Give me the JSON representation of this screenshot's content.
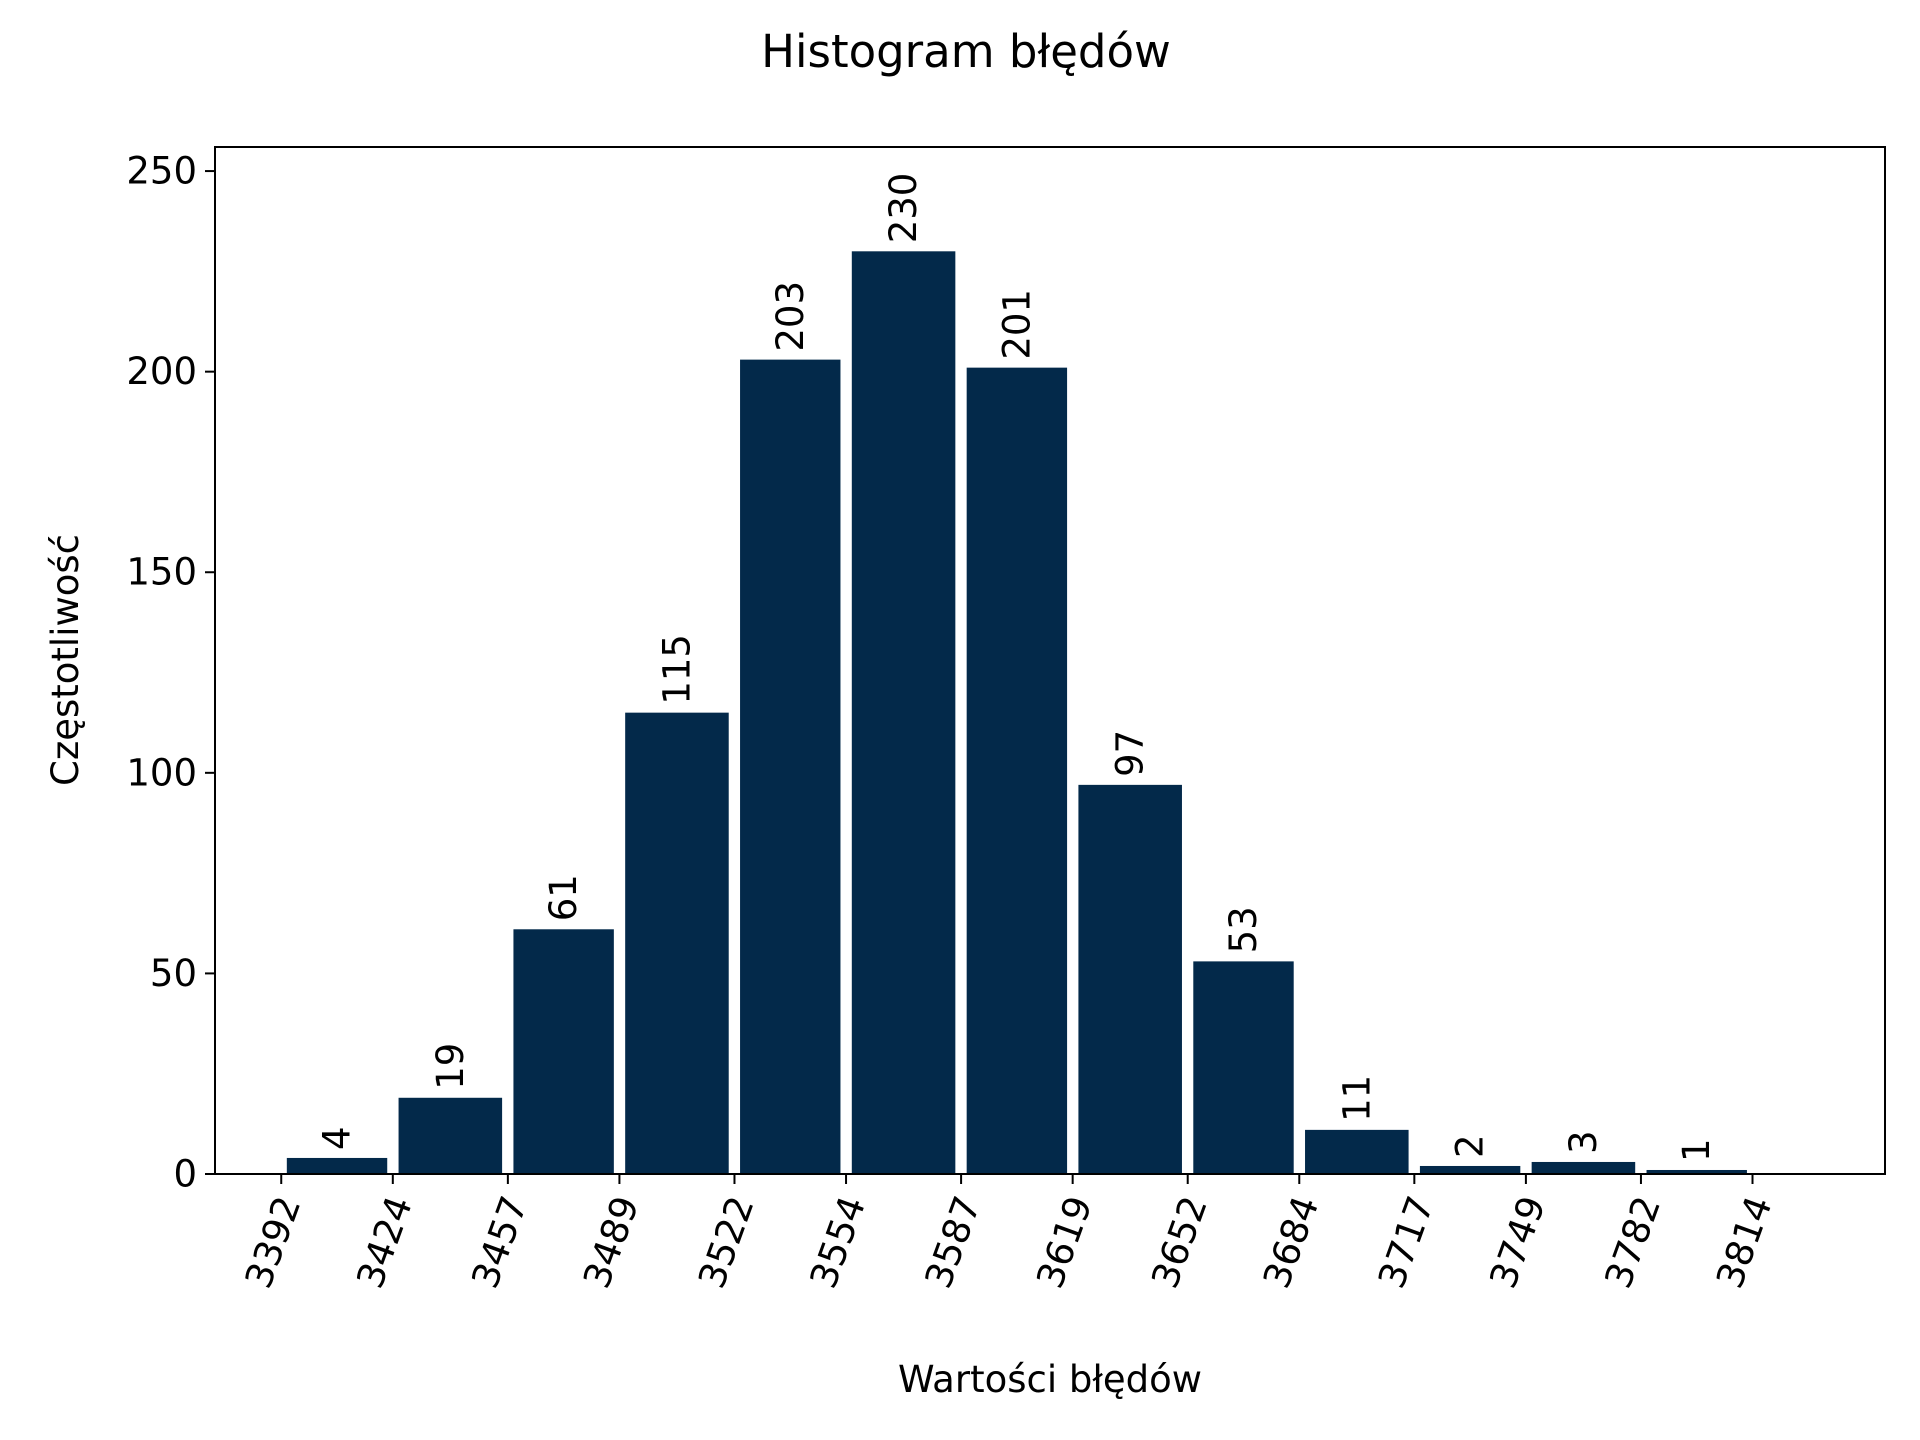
{
  "chart_data": {
    "type": "bar",
    "title": "Histogram błędów",
    "xlabel": "Wartości błędów",
    "ylabel": "Częstotliwość",
    "bin_edges": [
      3392,
      3424,
      3457,
      3489,
      3522,
      3554,
      3587,
      3619,
      3652,
      3684,
      3717,
      3749,
      3782,
      3814
    ],
    "tick_labels": [
      "3392",
      "3424",
      "3457",
      "3489",
      "3522",
      "3554",
      "3587",
      "3619",
      "3652",
      "3684",
      "3717",
      "3749",
      "3782",
      "3814"
    ],
    "values": [
      4,
      19,
      61,
      115,
      203,
      230,
      201,
      97,
      53,
      11,
      2,
      3,
      1
    ],
    "ylim": [
      0,
      256
    ],
    "yticks": [
      0,
      50,
      100,
      150,
      200,
      250
    ],
    "grid": false,
    "bar_color": "#03294a"
  }
}
